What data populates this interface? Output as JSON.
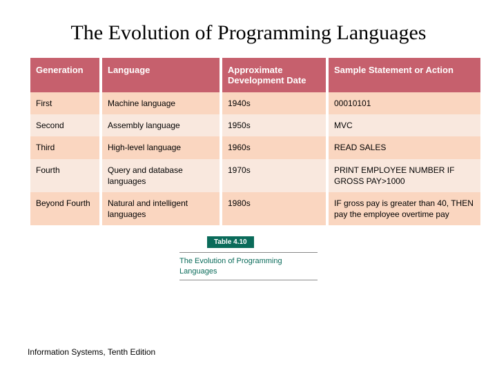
{
  "title": "The Evolution of Programming Languages",
  "footer": "Information Systems, Tenth Edition",
  "caption": {
    "tag_label": "Table 4.10",
    "tag_bg": "#0a6b5a",
    "text": "The Evolution of Programming Languages",
    "text_color": "#0a6b5a"
  },
  "table": {
    "header_bg": "#c6606d",
    "header_text_color": "#ffffff",
    "row_alt_bgs": [
      "#fad6c0",
      "#f9e8de"
    ],
    "columns": [
      "Generation",
      "Language",
      "Approximate Development Date",
      "Sample Statement or Action"
    ],
    "rows": [
      {
        "cells": [
          "First",
          "Machine language",
          "1940s",
          "00010101"
        ]
      },
      {
        "cells": [
          "Second",
          "Assembly language",
          "1950s",
          "MVC"
        ]
      },
      {
        "cells": [
          "Third",
          "High-level language",
          "1960s",
          "READ SALES"
        ]
      },
      {
        "cells": [
          "Fourth",
          "Query and database languages",
          "1970s",
          "PRINT EMPLOYEE NUMBER IF GROSS PAY>1000"
        ]
      },
      {
        "cells": [
          "Beyond Fourth",
          "Natural and intelligent languages",
          "1980s",
          "IF gross pay is greater than 40, THEN pay the employee overtime pay"
        ]
      }
    ]
  }
}
